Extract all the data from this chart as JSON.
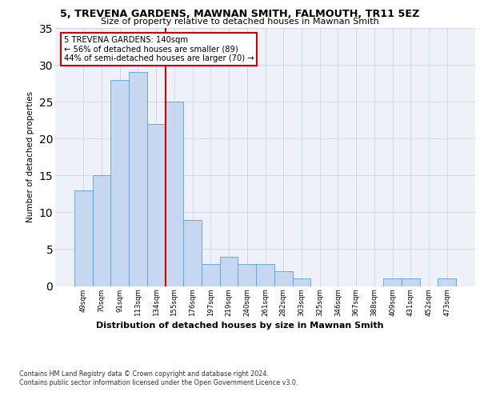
{
  "title1": "5, TREVENA GARDENS, MAWNAN SMITH, FALMOUTH, TR11 5EZ",
  "title2": "Size of property relative to detached houses in Mawnan Smith",
  "xlabel": "Distribution of detached houses by size in Mawnan Smith",
  "ylabel": "Number of detached properties",
  "categories": [
    "49sqm",
    "70sqm",
    "91sqm",
    "113sqm",
    "134sqm",
    "155sqm",
    "176sqm",
    "197sqm",
    "219sqm",
    "240sqm",
    "261sqm",
    "282sqm",
    "303sqm",
    "325sqm",
    "346sqm",
    "367sqm",
    "388sqm",
    "409sqm",
    "431sqm",
    "452sqm",
    "473sqm"
  ],
  "values": [
    13,
    15,
    28,
    29,
    22,
    25,
    9,
    3,
    4,
    3,
    3,
    2,
    1,
    0,
    0,
    0,
    0,
    1,
    1,
    0,
    1
  ],
  "bar_color": "#c5d8f0",
  "bar_edge_color": "#5a9fd4",
  "vline_x_idx": 4.5,
  "vline_color": "#cc0000",
  "annotation_text": "5 TREVENA GARDENS: 140sqm\n← 56% of detached houses are smaller (89)\n44% of semi-detached houses are larger (70) →",
  "annotation_box_color": "#ffffff",
  "annotation_box_edge_color": "#cc0000",
  "ylim": [
    0,
    35
  ],
  "yticks": [
    0,
    5,
    10,
    15,
    20,
    25,
    30,
    35
  ],
  "grid_color": "#d0d8e8",
  "bg_color": "#eef2f8",
  "footer1": "Contains HM Land Registry data © Crown copyright and database right 2024.",
  "footer2": "Contains public sector information licensed under the Open Government Licence v3.0."
}
